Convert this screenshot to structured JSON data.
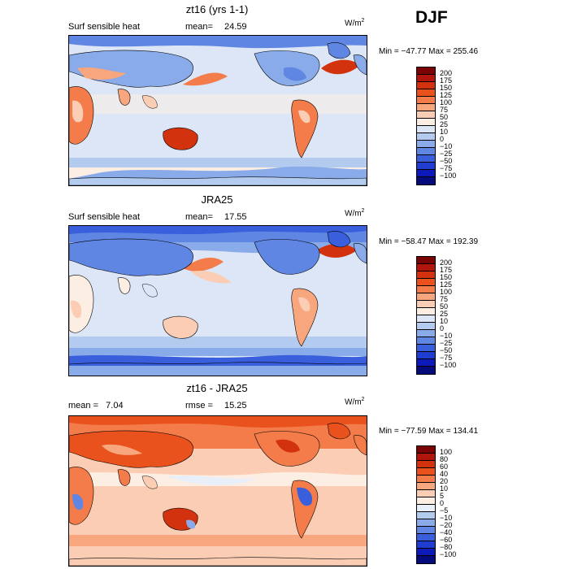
{
  "season": "DJF",
  "units_base": "W/m",
  "units_exp": "2",
  "panels": [
    {
      "title": "zt16 (yrs 1-1)",
      "left_stat": "Surf sensible heat",
      "right_stat_label": "mean=",
      "right_stat_value": "24.59",
      "minmax": "Min = −47.77 Max = 255.46",
      "colorbar_ticks": [
        "200",
        "175",
        "150",
        "125",
        "100",
        "75",
        "50",
        "25",
        "10",
        "0",
        "−10",
        "−25",
        "−50",
        "−75",
        "−100"
      ]
    },
    {
      "title": "JRA25",
      "left_stat": "Surf sensible heat",
      "right_stat_label": "mean=",
      "right_stat_value": "17.55",
      "minmax": "Min = −58.47 Max = 192.39",
      "colorbar_ticks": [
        "200",
        "175",
        "150",
        "125",
        "100",
        "75",
        "50",
        "25",
        "10",
        "0",
        "−10",
        "−25",
        "−50",
        "−75",
        "−100"
      ]
    },
    {
      "title": "zt16 - JRA25",
      "left_stat": "mean =   7.04",
      "right_stat_label": "rmse =",
      "right_stat_value": "15.25",
      "minmax": "Min = −77.59 Max = 134.41",
      "colorbar_ticks": [
        "100",
        "80",
        "60",
        "40",
        "20",
        "10",
        "5",
        "0",
        "−5",
        "−10",
        "−20",
        "−40",
        "−60",
        "−80",
        "−100"
      ]
    }
  ],
  "colors": {
    "palette_abs": [
      "#7a0403",
      "#b1150c",
      "#d3320f",
      "#e9521c",
      "#f37c4a",
      "#f7a67d",
      "#fbcdb4",
      "#fdeee3",
      "#dce6f6",
      "#b4cbf0",
      "#8aabea",
      "#5f86e3",
      "#3a5fdc",
      "#1f3ed1",
      "#0b1ab8",
      "#050b7a"
    ],
    "palette_diff": [
      "#7a0403",
      "#b1150c",
      "#d3320f",
      "#e9521c",
      "#f37c4a",
      "#f7a67d",
      "#fbcdb4",
      "#fdeee3",
      "#e8eff9",
      "#b4cbf0",
      "#8aabea",
      "#5f86e3",
      "#3a5fdc",
      "#1f3ed1",
      "#0b1ab8",
      "#050b7a"
    ],
    "ocean_light": "#dce6f6",
    "land_outline": "#000000"
  },
  "chart_data": [
    {
      "type": "heatmap",
      "title": "zt16 (yrs 1-1)",
      "variable": "Surf sensible heat",
      "units": "W/m2",
      "mean": 24.59,
      "min": -47.77,
      "max": 255.46,
      "levels": [
        -100,
        -75,
        -50,
        -25,
        -10,
        0,
        10,
        25,
        50,
        75,
        100,
        125,
        150,
        175,
        200
      ]
    },
    {
      "type": "heatmap",
      "title": "JRA25",
      "variable": "Surf sensible heat",
      "units": "W/m2",
      "mean": 17.55,
      "min": -58.47,
      "max": 192.39,
      "levels": [
        -100,
        -75,
        -50,
        -25,
        -10,
        0,
        10,
        25,
        50,
        75,
        100,
        125,
        150,
        175,
        200
      ]
    },
    {
      "type": "heatmap",
      "title": "zt16 - JRA25",
      "units": "W/m2",
      "mean": 7.04,
      "rmse": 15.25,
      "min": -77.59,
      "max": 134.41,
      "levels": [
        -100,
        -80,
        -60,
        -40,
        -20,
        -10,
        -5,
        0,
        5,
        10,
        20,
        40,
        60,
        80,
        100
      ]
    }
  ]
}
